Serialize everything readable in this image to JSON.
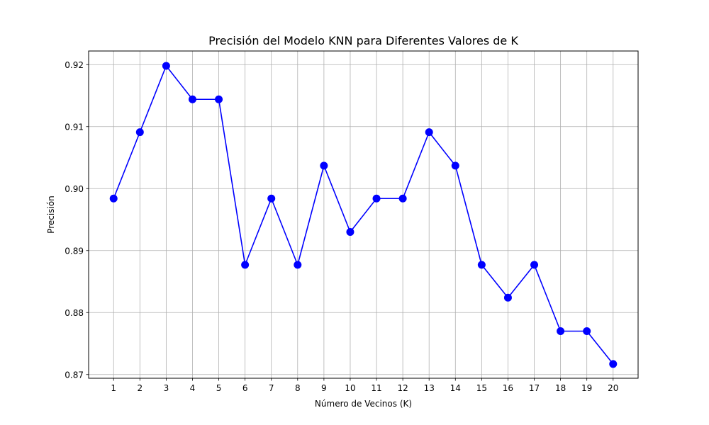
{
  "chart_data": {
    "type": "line",
    "title": "Precisión del Modelo KNN para Diferentes Valores de K",
    "xlabel": "Número de Vecinos (K)",
    "ylabel": "Precisión",
    "x": [
      1,
      2,
      3,
      4,
      5,
      6,
      7,
      8,
      9,
      10,
      11,
      12,
      13,
      14,
      15,
      16,
      17,
      18,
      19,
      20
    ],
    "x_tick_labels": [
      "1",
      "2",
      "3",
      "4",
      "5",
      "6",
      "7",
      "8",
      "9",
      "10",
      "11",
      "12",
      "13",
      "14",
      "15",
      "16",
      "17",
      "18",
      "19",
      "20"
    ],
    "y_ticks": [
      0.87,
      0.88,
      0.89,
      0.9,
      0.91,
      0.92
    ],
    "y_tick_labels": [
      "0.87",
      "0.88",
      "0.89",
      "0.90",
      "0.91",
      "0.92"
    ],
    "xlim": [
      0.05,
      20.95
    ],
    "ylim": [
      0.8694,
      0.9222
    ],
    "series": [
      {
        "values": [
          0.8984,
          0.9091,
          0.9198,
          0.9144,
          0.9144,
          0.8877,
          0.8984,
          0.8877,
          0.9037,
          0.893,
          0.8984,
          0.8984,
          0.9091,
          0.9037,
          0.8877,
          0.8824,
          0.8877,
          0.877,
          0.877,
          0.8717
        ],
        "color": "#0000ff",
        "marker": "circle"
      }
    ],
    "grid": true,
    "grid_color": "#b0b0b0",
    "legend": false
  }
}
